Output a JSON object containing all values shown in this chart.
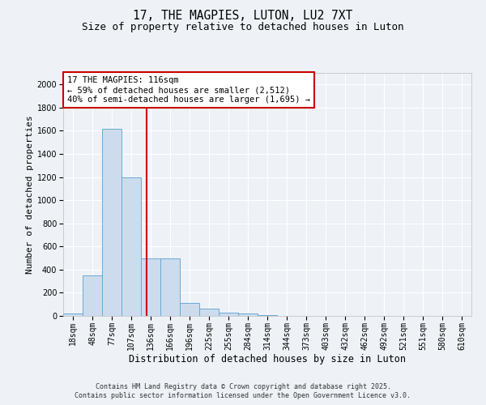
{
  "title": "17, THE MAGPIES, LUTON, LU2 7XT",
  "subtitle": "Size of property relative to detached houses in Luton",
  "xlabel": "Distribution of detached houses by size in Luton",
  "ylabel": "Number of detached properties",
  "categories": [
    "18sqm",
    "48sqm",
    "77sqm",
    "107sqm",
    "136sqm",
    "166sqm",
    "196sqm",
    "225sqm",
    "255sqm",
    "284sqm",
    "314sqm",
    "344sqm",
    "373sqm",
    "403sqm",
    "432sqm",
    "462sqm",
    "492sqm",
    "521sqm",
    "551sqm",
    "580sqm",
    "610sqm"
  ],
  "values": [
    20,
    350,
    1620,
    1200,
    500,
    500,
    110,
    60,
    30,
    20,
    5,
    2,
    2,
    2,
    2,
    2,
    2,
    2,
    2,
    2,
    2
  ],
  "bar_color": "#ccdcec",
  "bar_edge_color": "#6aaad4",
  "bar_edge_width": 0.7,
  "red_line_color": "#cc0000",
  "annotation_text": "17 THE MAGPIES: 116sqm\n← 59% of detached houses are smaller (2,512)\n40% of semi-detached houses are larger (1,695) →",
  "annotation_box_color": "#ffffff",
  "annotation_box_edge": "#cc0000",
  "ylim": [
    0,
    2100
  ],
  "yticks": [
    0,
    200,
    400,
    600,
    800,
    1000,
    1200,
    1400,
    1600,
    1800,
    2000
  ],
  "footer1": "Contains HM Land Registry data © Crown copyright and database right 2025.",
  "footer2": "Contains public sector information licensed under the Open Government Licence v3.0.",
  "background_color": "#eef2f7",
  "plot_background": "#eef2f7",
  "grid_color": "#ffffff",
  "title_fontsize": 10.5,
  "subtitle_fontsize": 9,
  "axis_label_fontsize": 8,
  "tick_fontsize": 7,
  "footer_fontsize": 6
}
